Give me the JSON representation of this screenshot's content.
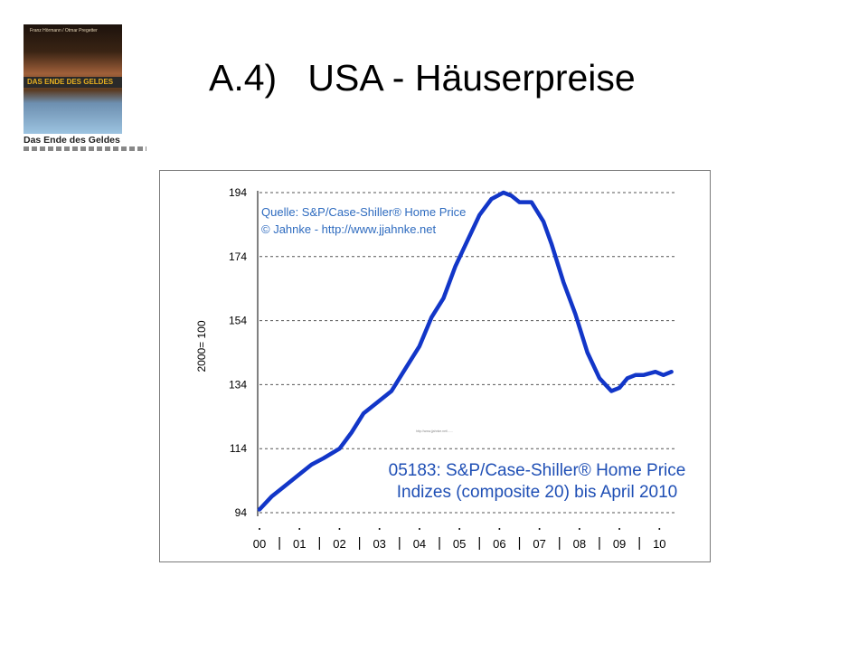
{
  "slide": {
    "title": "A.4)   USA - Häuserpreise",
    "book": {
      "authors": "Franz Hörmann / Otmar Pregetter",
      "cover_title": "DAS ENDE DES GELDES",
      "caption": "Das Ende des Geldes"
    }
  },
  "chart_data": {
    "type": "line",
    "title": "05183: S&P/Case-Shiller® Home Price",
    "subtitle": "Indizes (composite 20) bis April 2010",
    "source_line1": "Quelle: S&P/Case-Shiller® Home Price",
    "source_line2": "© Jahnke - http://www.jjahnke.net",
    "ylabel": "2000= 100",
    "xlabel": "",
    "ylim": [
      94,
      194
    ],
    "xlim": [
      2000.0,
      2010.4
    ],
    "yticks": [
      94,
      114,
      134,
      154,
      174,
      194
    ],
    "xtick_labels": [
      "00",
      "01",
      "02",
      "03",
      "04",
      "05",
      "06",
      "07",
      "08",
      "09",
      "10"
    ],
    "grid": "horizontal dashed",
    "color": "#1236c8",
    "series": [
      {
        "x": [
          2000.0,
          2000.3,
          2000.6,
          2001.0,
          2001.3,
          2001.6,
          2002.0,
          2002.3,
          2002.6,
          2003.0,
          2003.3,
          2003.6,
          2004.0,
          2004.3,
          2004.6,
          2004.9,
          2005.2,
          2005.5,
          2005.8,
          2006.1,
          2006.3,
          2006.5,
          2006.8,
          2007.1,
          2007.3,
          2007.6,
          2007.9,
          2008.2,
          2008.5,
          2008.8,
          2009.0,
          2009.2,
          2009.4,
          2009.6,
          2009.9,
          2010.1,
          2010.3
        ],
        "y": [
          95,
          99,
          102,
          106,
          109,
          111,
          114,
          119,
          125,
          129,
          132,
          138,
          146,
          155,
          161,
          171,
          179,
          187,
          192,
          194,
          193,
          191,
          191,
          185,
          178,
          166,
          156,
          144,
          136,
          132,
          133,
          136,
          137,
          137,
          138,
          137,
          138
        ]
      }
    ]
  }
}
